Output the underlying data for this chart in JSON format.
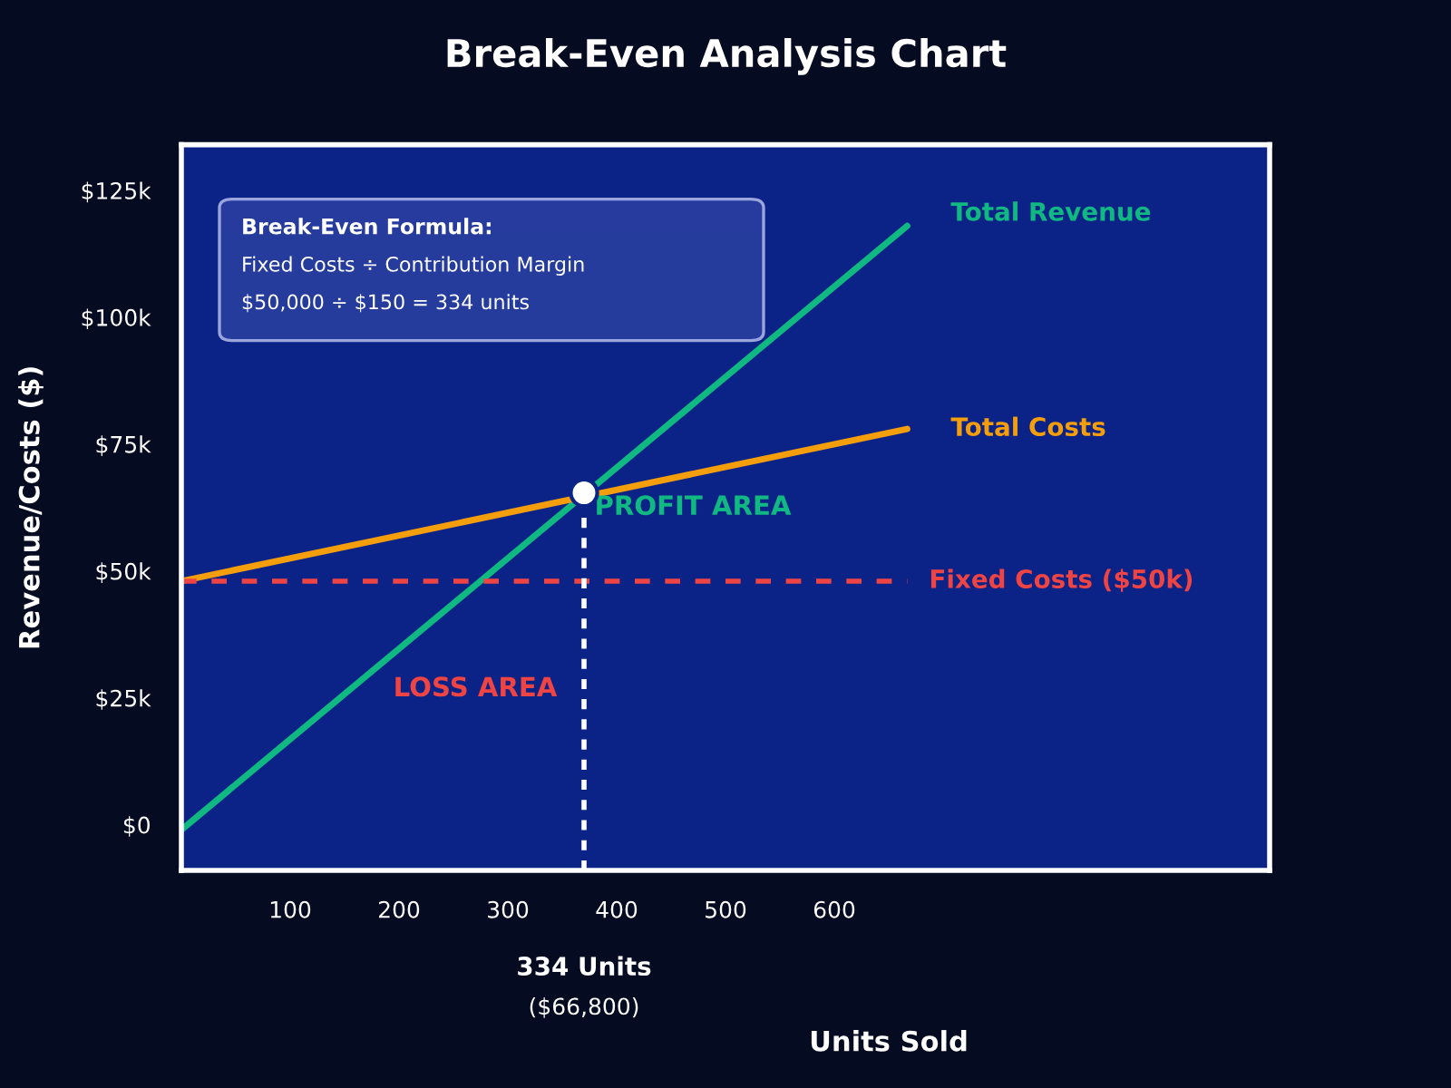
{
  "chart_data": {
    "type": "line",
    "title": "Break-Even Analysis Chart",
    "xlabel": "Units Sold",
    "ylabel": "Revenue/Costs ($)",
    "xlim": [
      0,
      1000
    ],
    "xticks": [
      100,
      200,
      300,
      400,
      500,
      600
    ],
    "ylim": [
      -9,
      134
    ],
    "yticks": [
      {
        "value": 0,
        "label": "$0"
      },
      {
        "value": 25,
        "label": "$25k"
      },
      {
        "value": 50,
        "label": "$50k"
      },
      {
        "value": 75,
        "label": "$75k"
      },
      {
        "value": 100,
        "label": "$100k"
      },
      {
        "value": 125,
        "label": "$125k"
      }
    ],
    "grid": false,
    "legend": false,
    "series": [
      {
        "name": "Total Revenue",
        "color": "#10b981",
        "x": [
          0,
          667
        ],
        "values": [
          -1,
          118
        ]
      },
      {
        "name": "Total Costs",
        "color": "#f59e0b",
        "x": [
          0,
          667
        ],
        "values": [
          48,
          78
        ]
      },
      {
        "type": "scatter",
        "color": "#ffffff",
        "x": [
          370
        ],
        "values": [
          65.4
        ]
      }
    ],
    "ref_lines": [
      {
        "axis": "y",
        "value": 48,
        "label": "Fixed Costs ($50k)",
        "color": "#ef4444",
        "line_style": "dashed"
      },
      {
        "axis": "x",
        "value": 370,
        "label": "334 Units",
        "color": "#ffffff",
        "line_style": "dotted"
      }
    ],
    "annotations": [
      "Break-Even Formula:",
      "Fixed Costs ÷ Contribution Margin",
      "$50,000 ÷ $150 = 334 units",
      "($66,800)",
      "PROFIT AREA",
      "LOSS AREA"
    ]
  }
}
